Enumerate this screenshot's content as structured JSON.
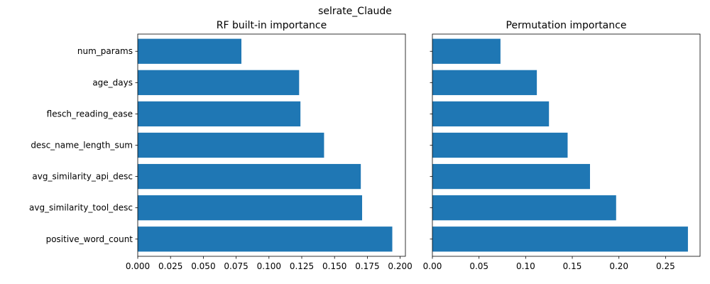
{
  "suptitle": "selrate_Claude",
  "chart_data": [
    {
      "type": "bar",
      "orientation": "horizontal",
      "title": "RF built-in importance",
      "categories": [
        "positive_word_count",
        "avg_similarity_tool_desc",
        "avg_similarity_api_desc",
        "desc_name_length_sum",
        "flesch_reading_ease",
        "age_days",
        "num_params"
      ],
      "values": [
        0.194,
        0.171,
        0.17,
        0.142,
        0.124,
        0.123,
        0.079
      ],
      "xlim": [
        0,
        0.204
      ],
      "xticks": [
        0.0,
        0.025,
        0.05,
        0.075,
        0.1,
        0.125,
        0.15,
        0.175,
        0.2
      ],
      "xtick_labels": [
        "0.000",
        "0.025",
        "0.050",
        "0.075",
        "0.100",
        "0.125",
        "0.150",
        "0.175",
        "0.200"
      ],
      "grid": false,
      "color": "#1f77b4"
    },
    {
      "type": "bar",
      "orientation": "horizontal",
      "title": "Permutation importance",
      "categories": [
        "positive_word_count",
        "avg_similarity_tool_desc",
        "avg_similarity_api_desc",
        "desc_name_length_sum",
        "flesch_reading_ease",
        "age_days",
        "num_params"
      ],
      "values": [
        0.274,
        0.197,
        0.169,
        0.145,
        0.125,
        0.112,
        0.073
      ],
      "xlim": [
        0,
        0.287
      ],
      "xticks": [
        0.0,
        0.05,
        0.1,
        0.15,
        0.2,
        0.25
      ],
      "xtick_labels": [
        "0.00",
        "0.05",
        "0.10",
        "0.15",
        "0.20",
        "0.25"
      ],
      "grid": false,
      "color": "#1f77b4",
      "shares_y_with_first": true
    }
  ]
}
